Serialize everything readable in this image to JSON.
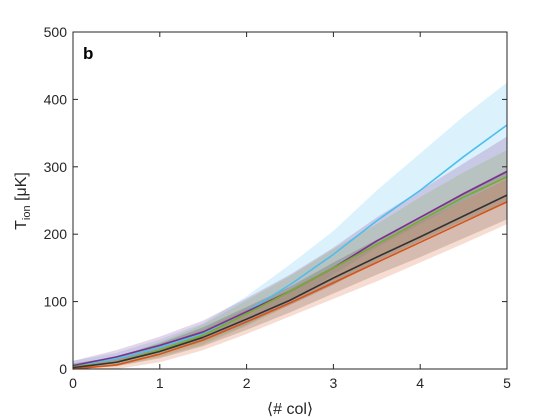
{
  "chart_data": {
    "type": "line",
    "panel_label": "b",
    "title": "",
    "xlabel": "⟨# col⟩",
    "ylabel_main": "T",
    "ylabel_sub": "ion",
    "ylabel_unit": " [μK]",
    "xlim": [
      0,
      5
    ],
    "ylim": [
      0,
      500
    ],
    "xticks": [
      0,
      1,
      2,
      3,
      4,
      5
    ],
    "yticks": [
      0,
      100,
      200,
      300,
      400,
      500
    ],
    "xtick_labels": [
      "0",
      "1",
      "2",
      "3",
      "4",
      "5"
    ],
    "ytick_labels": [
      "0",
      "100",
      "200",
      "300",
      "400",
      "500"
    ],
    "grid": false,
    "legend": "none",
    "band_opacity": 0.2,
    "x": [
      0,
      0.5,
      1,
      1.5,
      2,
      2.5,
      3,
      3.5,
      4,
      4.5,
      5
    ],
    "series": [
      {
        "color": "#4DBEEE",
        "values": [
          5,
          15,
          32,
          53,
          85,
          125,
          170,
          220,
          265,
          315,
          362
        ],
        "lower": [
          0,
          8,
          22,
          40,
          65,
          100,
          140,
          180,
          215,
          250,
          285
        ],
        "upper": [
          12,
          24,
          44,
          68,
          108,
          155,
          205,
          265,
          320,
          375,
          425
        ]
      },
      {
        "color": "#7E2F8E",
        "values": [
          5,
          18,
          35,
          55,
          85,
          115,
          150,
          190,
          225,
          260,
          293
        ],
        "lower": [
          0,
          10,
          25,
          42,
          68,
          95,
          125,
          160,
          190,
          220,
          248
        ],
        "upper": [
          12,
          28,
          48,
          72,
          105,
          140,
          180,
          225,
          265,
          305,
          345
        ]
      },
      {
        "color": "#77AC30",
        "values": [
          3,
          10,
          28,
          50,
          82,
          115,
          150,
          185,
          220,
          255,
          285
        ],
        "lower": [
          0,
          4,
          18,
          36,
          64,
          95,
          125,
          158,
          190,
          220,
          248
        ],
        "upper": [
          8,
          18,
          40,
          66,
          102,
          138,
          178,
          215,
          255,
          292,
          325
        ]
      },
      {
        "color": "#333333",
        "values": [
          2,
          10,
          26,
          47,
          74,
          102,
          135,
          166,
          196,
          227,
          258
        ],
        "lower": [
          0,
          4,
          16,
          34,
          58,
          84,
          112,
          140,
          166,
          194,
          222
        ],
        "upper": [
          8,
          18,
          38,
          62,
          92,
          122,
          158,
          192,
          226,
          262,
          295
        ]
      },
      {
        "color": "#D95319",
        "values": [
          0,
          6,
          22,
          43,
          70,
          98,
          128,
          158,
          188,
          218,
          248
        ],
        "lower": [
          0,
          0,
          10,
          28,
          52,
          78,
          104,
          130,
          158,
          186,
          215
        ],
        "upper": [
          4,
          14,
          34,
          58,
          88,
          118,
          152,
          186,
          218,
          250,
          282
        ]
      }
    ]
  }
}
